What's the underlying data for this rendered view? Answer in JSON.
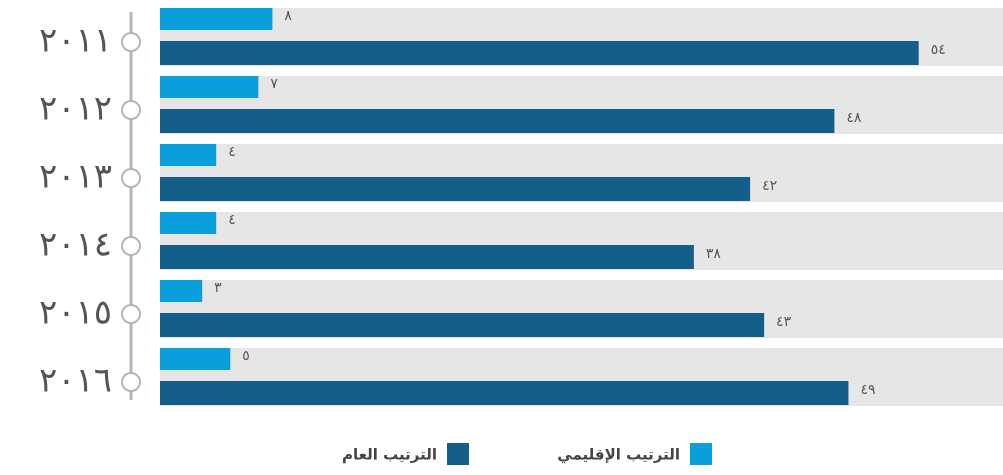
{
  "chart_data": {
    "type": "bar",
    "orientation": "horizontal",
    "categories": [
      "٢٠١١",
      "٢٠١٢",
      "٢٠١٣",
      "٢٠١٤",
      "٢٠١٥",
      "٢٠١٦"
    ],
    "series": [
      {
        "name": "الترتيب الإقليمي",
        "color": "#0a9fdc",
        "values": [
          8,
          7,
          4,
          4,
          3,
          5
        ],
        "value_labels": [
          "٨",
          "٧",
          "٤",
          "٤",
          "٣",
          "٥"
        ]
      },
      {
        "name": "الترتيب العام",
        "color": "#135e8a",
        "values": [
          54,
          48,
          42,
          38,
          43,
          49
        ],
        "value_labels": [
          "٥٤",
          "٤٨",
          "٤٢",
          "٣٨",
          "٤٣",
          "٤٩"
        ]
      }
    ],
    "xlim": [
      0,
      60
    ]
  }
}
